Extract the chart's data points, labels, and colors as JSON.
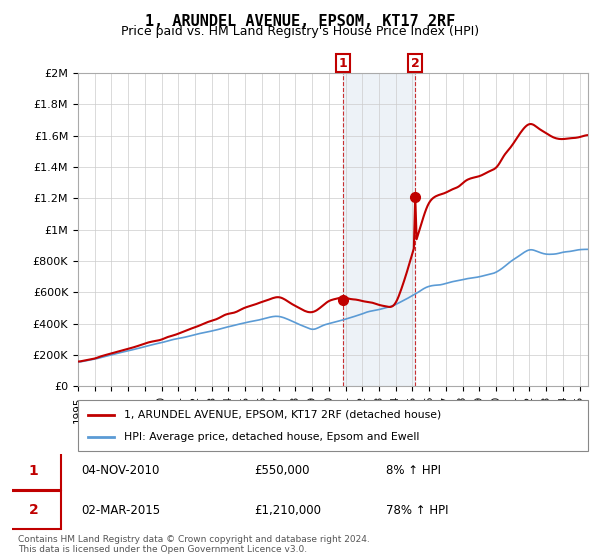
{
  "title": "1, ARUNDEL AVENUE, EPSOM, KT17 2RF",
  "subtitle": "Price paid vs. HM Land Registry's House Price Index (HPI)",
  "ylabel_ticks": [
    "£0",
    "£200K",
    "£400K",
    "£600K",
    "£800K",
    "£1M",
    "£1.2M",
    "£1.4M",
    "£1.6M",
    "£1.8M",
    "£2M"
  ],
  "ytick_values": [
    0,
    200000,
    400000,
    600000,
    800000,
    1000000,
    1200000,
    1400000,
    1600000,
    1800000,
    2000000
  ],
  "ylim": [
    0,
    2000000
  ],
  "xlim_start": 1995.0,
  "xlim_end": 2025.5,
  "hpi_color": "#5b9bd5",
  "price_color": "#c00000",
  "shade_color": "#dce6f1",
  "transaction1_date": 2010.85,
  "transaction1_price": 550000,
  "transaction2_date": 2015.17,
  "transaction2_price": 1210000,
  "legend_label1": "1, ARUNDEL AVENUE, EPSOM, KT17 2RF (detached house)",
  "legend_label2": "HPI: Average price, detached house, Epsom and Ewell",
  "table_row1": [
    "1",
    "04-NOV-2010",
    "£550,000",
    "8% ↑ HPI"
  ],
  "table_row2": [
    "2",
    "02-MAR-2015",
    "£1,210,000",
    "78% ↑ HPI"
  ],
  "footnote": "Contains HM Land Registry data © Crown copyright and database right 2024.\nThis data is licensed under the Open Government Licence v3.0.",
  "background_color": "#ffffff",
  "grid_color": "#cccccc"
}
